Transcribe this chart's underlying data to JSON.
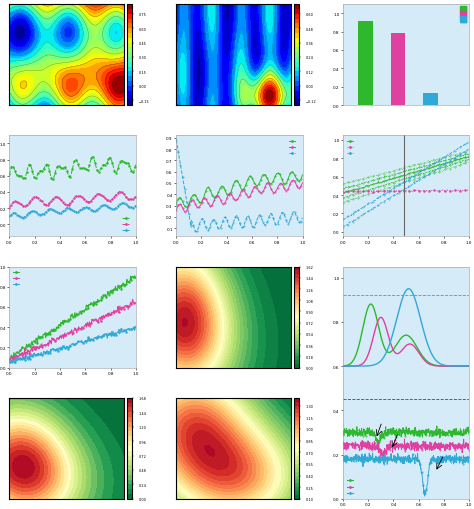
{
  "green": "#2db82d",
  "pink": "#e040a0",
  "blue": "#30a8d8",
  "bg": "#d5ecf8",
  "bar_vals": [
    0.92,
    0.78,
    0.13
  ],
  "bar_colors": [
    "#2db82d",
    "#e040a0",
    "#30a8d8"
  ],
  "cmap_row0": "jet",
  "cmap_contour_green": "RdYlGn",
  "cmap_contour_red": "RdYlGn"
}
